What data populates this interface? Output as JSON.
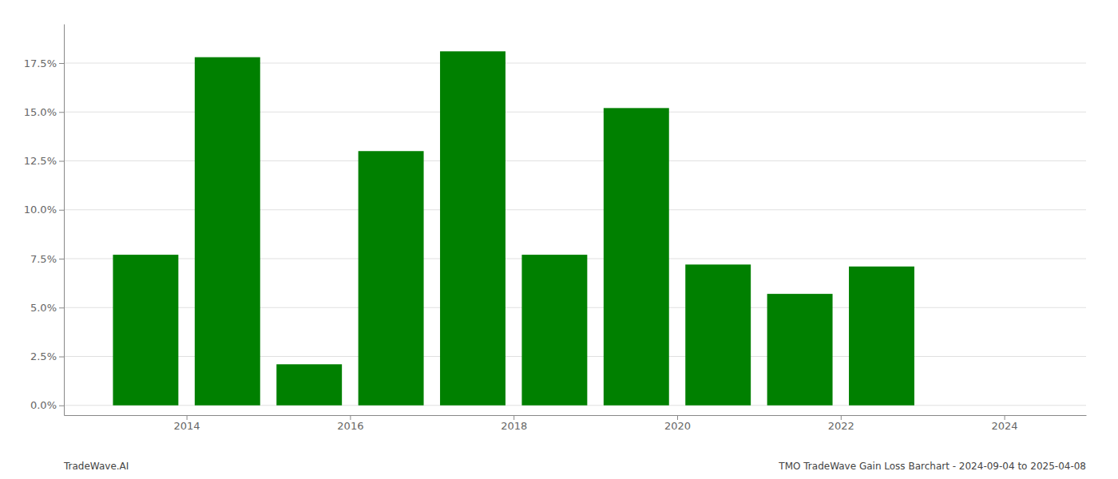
{
  "chart_data": {
    "type": "bar",
    "x": [
      2013.5,
      2014.5,
      2015.5,
      2016.5,
      2017.5,
      2018.5,
      2019.5,
      2020.5,
      2021.5,
      2022.5
    ],
    "values": [
      0.077,
      0.178,
      0.021,
      0.13,
      0.181,
      0.077,
      0.152,
      0.072,
      0.057,
      0.071
    ],
    "color": "#008000",
    "xlim": [
      2012.5,
      2025.0
    ],
    "xticks": [
      2014,
      2016,
      2018,
      2020,
      2022,
      2024
    ],
    "ylim": [
      -0.005,
      0.195
    ],
    "yticks": [
      {
        "value": 0.0,
        "label": "0.0%"
      },
      {
        "value": 0.025,
        "label": "2.5%"
      },
      {
        "value": 0.05,
        "label": "5.0%"
      },
      {
        "value": 0.075,
        "label": "7.5%"
      },
      {
        "value": 0.1,
        "label": "10.0%"
      },
      {
        "value": 0.125,
        "label": "12.5%"
      },
      {
        "value": 0.15,
        "label": "15.0%"
      },
      {
        "value": 0.175,
        "label": "17.5%"
      }
    ],
    "grid": true,
    "annotations": [
      "TradeWave.AI",
      "TMO TradeWave Gain Loss Barchart - 2024-09-04 to 2025-04-08"
    ]
  }
}
